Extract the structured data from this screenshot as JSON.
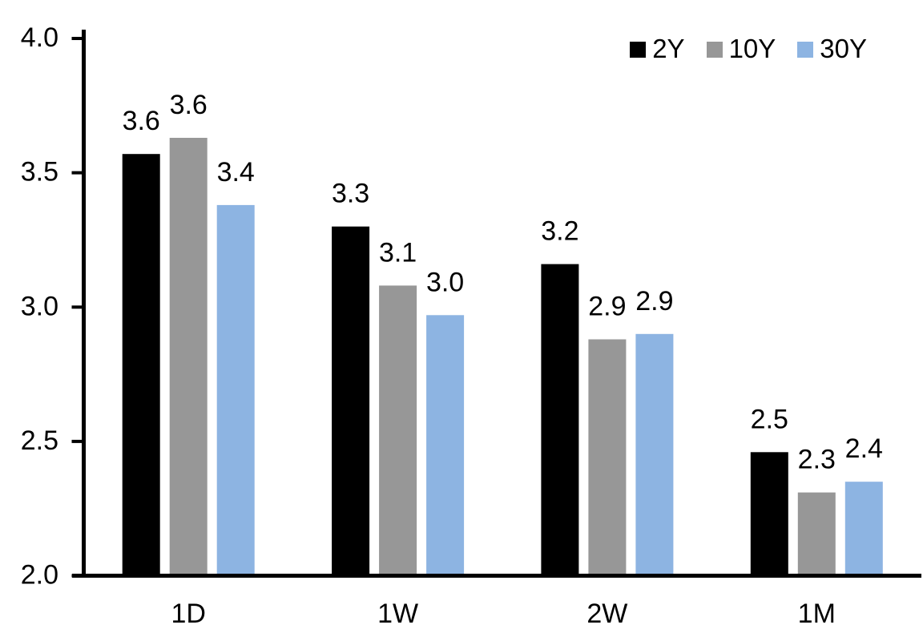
{
  "chart_data": {
    "type": "bar",
    "title": "",
    "xlabel": "",
    "ylabel": "",
    "categories": [
      "1D",
      "1W",
      "2W",
      "1M"
    ],
    "series": [
      {
        "name": "2Y",
        "color": "#000000",
        "values": [
          3.6,
          3.3,
          3.2,
          2.5
        ],
        "data_labels": [
          "3.6",
          "3.3",
          "3.2",
          "2.5"
        ],
        "bar_heights_precise": [
          3.57,
          3.3,
          3.16,
          2.46
        ]
      },
      {
        "name": "10Y",
        "color": "#979797",
        "values": [
          3.6,
          3.1,
          2.9,
          2.3
        ],
        "data_labels": [
          "3.6",
          "3.1",
          "2.9",
          "2.3"
        ],
        "bar_heights_precise": [
          3.63,
          3.08,
          2.88,
          2.31
        ]
      },
      {
        "name": "30Y",
        "color": "#8DB4E2",
        "values": [
          3.4,
          3.0,
          2.9,
          2.4
        ],
        "data_labels": [
          "3.4",
          "3.0",
          "2.9",
          "2.4"
        ],
        "bar_heights_precise": [
          3.38,
          2.97,
          2.9,
          2.35
        ]
      }
    ],
    "ylim": [
      2.0,
      4.0
    ],
    "ytick_values": [
      4.0,
      3.5,
      3.0,
      2.5,
      2.0
    ],
    "ytick_labels": [
      "4.0",
      "3.5",
      "3.0",
      "2.5",
      "2.0"
    ],
    "grid": false,
    "legend_position": "top-right",
    "axis_color": "#000000",
    "text_color": "#000000",
    "background": "#FFFFFF"
  }
}
